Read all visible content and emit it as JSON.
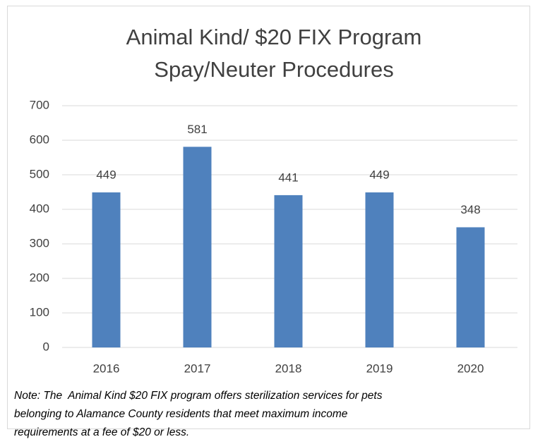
{
  "chart_data": {
    "type": "bar",
    "title": [
      "Animal Kind/ $20 FIX Program",
      "Spay/Neuter Procedures"
    ],
    "categories": [
      "2016",
      "2017",
      "2018",
      "2019",
      "2020"
    ],
    "values": [
      449,
      581,
      441,
      449,
      348
    ],
    "color": "#4f81bd",
    "ylim": [
      0,
      700
    ],
    "yticks": [
      0,
      100,
      200,
      300,
      400,
      500,
      600,
      700
    ],
    "grid": true,
    "note": [
      "Note: The  Animal Kind $20 FIX program offers sterilization services for pets",
      "belonging to Alamance County residents that meet maximum income",
      "requirements at a fee of $20 or less."
    ]
  }
}
